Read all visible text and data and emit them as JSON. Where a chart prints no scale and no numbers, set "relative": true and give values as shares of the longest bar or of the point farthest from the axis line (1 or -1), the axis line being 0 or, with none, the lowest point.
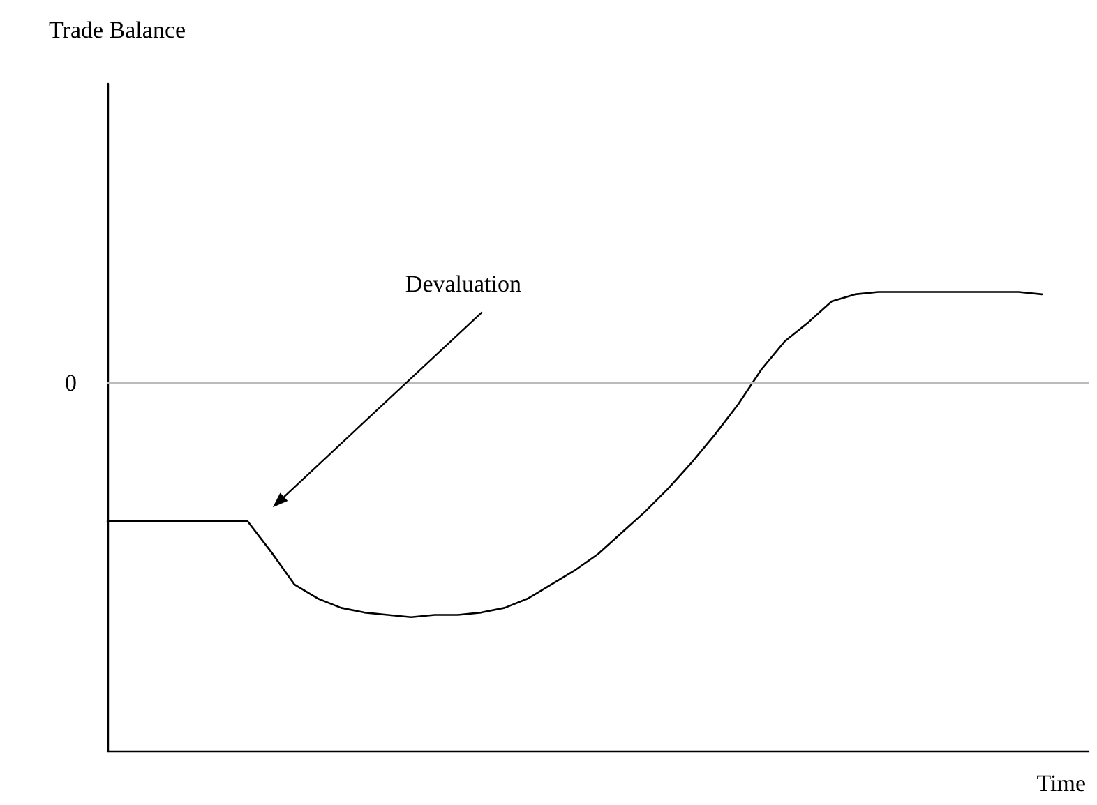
{
  "chart_data": {
    "type": "line",
    "relative": true,
    "categories": [
      null,
      null,
      null,
      null,
      null,
      null,
      null,
      null,
      null,
      null,
      null,
      null,
      null,
      null,
      null,
      null,
      null,
      null,
      null,
      null,
      null,
      null,
      null,
      null,
      null,
      null,
      null,
      null,
      null,
      null,
      null,
      null,
      null,
      null,
      null,
      null,
      null,
      null,
      null,
      null,
      null,
      null,
      null
    ],
    "series": [
      {
        "color": "#000000",
        "values": [
          -0.59,
          -0.59,
          -0.59,
          -0.59,
          -0.59,
          -0.59,
          -0.59,
          -0.72,
          -0.86,
          -0.92,
          -0.96,
          -0.98,
          -0.99,
          -1,
          -0.99,
          -0.99,
          -0.98,
          -0.96,
          -0.92,
          -0.86,
          -0.8,
          -0.73,
          -0.64,
          -0.55,
          -0.45,
          -0.34,
          -0.22,
          -0.09,
          0.06,
          0.18,
          0.26,
          0.35,
          0.38,
          0.39,
          0.39,
          0.39,
          0.39,
          0.39,
          0.39,
          0.39,
          0.38,
          null,
          null
        ]
      }
    ],
    "ref_lines": [
      {
        "axis": "y",
        "value": 0,
        "label": "0",
        "color": "#bbbbbb"
      }
    ],
    "annotations": [
      "Trade Balance",
      "Devaluation",
      "Time"
    ],
    "grid": false,
    "marker": "none",
    "line_style": "solid"
  }
}
